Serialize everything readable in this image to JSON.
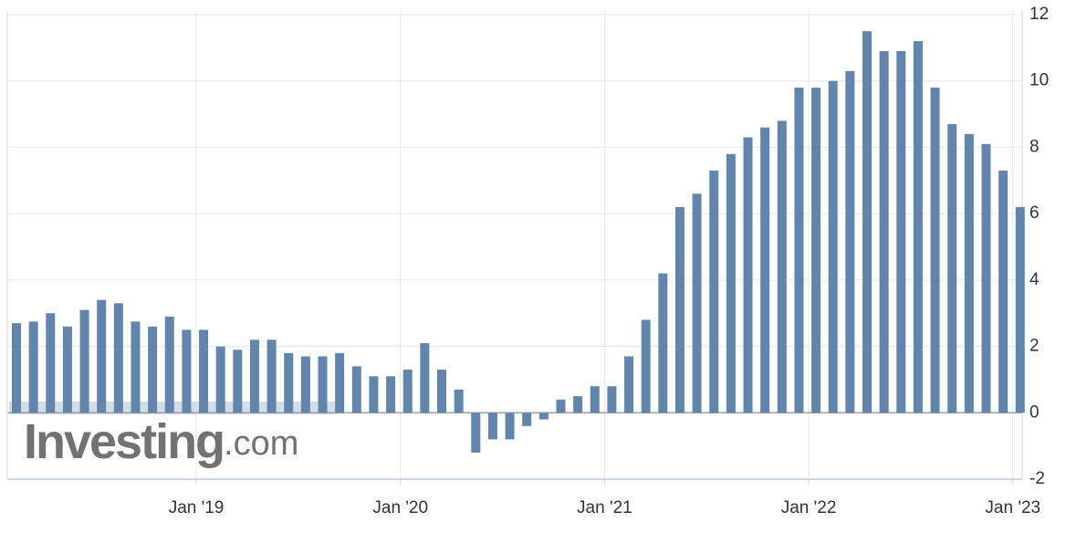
{
  "chart_data": {
    "type": "bar",
    "categories": [
      null,
      null,
      null,
      null,
      null,
      null,
      null,
      null,
      null,
      null,
      null,
      "Jan '19",
      null,
      null,
      null,
      null,
      null,
      null,
      null,
      null,
      null,
      null,
      null,
      "Jan '20",
      null,
      null,
      null,
      null,
      null,
      null,
      null,
      null,
      null,
      null,
      null,
      "Jan '21",
      null,
      null,
      null,
      null,
      null,
      null,
      null,
      null,
      null,
      null,
      null,
      "Jan '22",
      null,
      null,
      null,
      null,
      null,
      null,
      null,
      null,
      null,
      null,
      null,
      "Jan '23"
    ],
    "values": [
      2.7,
      2.75,
      3.0,
      2.6,
      3.1,
      3.4,
      3.3,
      2.75,
      2.6,
      2.9,
      2.5,
      2.5,
      2.0,
      1.9,
      2.2,
      2.2,
      1.8,
      1.7,
      1.7,
      1.8,
      1.4,
      1.1,
      1.1,
      1.3,
      2.1,
      1.3,
      0.7,
      -1.2,
      -0.8,
      -0.8,
      -0.4,
      -0.2,
      0.4,
      0.5,
      0.8,
      0.8,
      1.7,
      2.8,
      4.2,
      6.2,
      6.6,
      7.3,
      7.8,
      8.3,
      8.6,
      8.8,
      9.8,
      9.8,
      10.0,
      10.3,
      11.5,
      10.9,
      10.9,
      11.2,
      9.8,
      8.7,
      8.4,
      8.1,
      7.3,
      6.2
    ],
    "color": "#6185ad",
    "ylim": [
      -2,
      12
    ],
    "yticks": [
      -2,
      0,
      2,
      4,
      6,
      8,
      10,
      12
    ],
    "grid": true,
    "watermark_brand": "Investing",
    "watermark_domain": ".com"
  }
}
